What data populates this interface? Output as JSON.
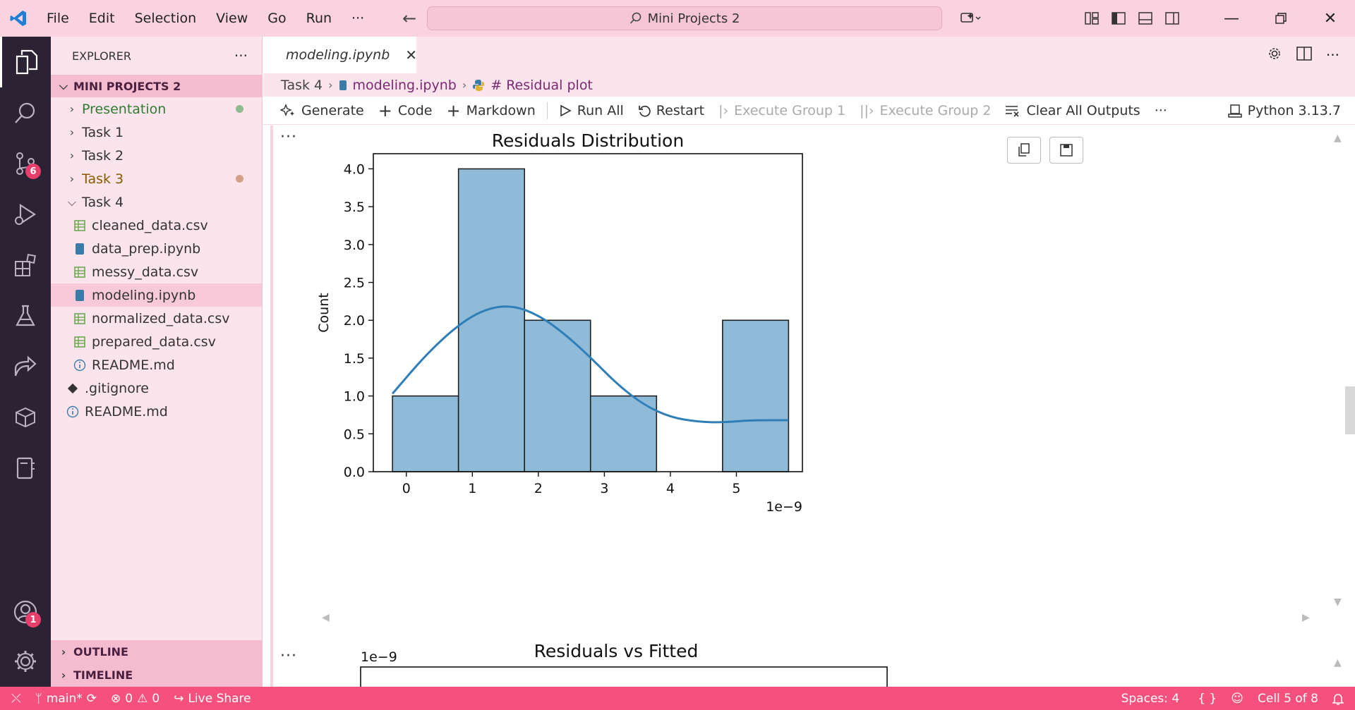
{
  "titlebar": {
    "menu": [
      "File",
      "Edit",
      "Selection",
      "View",
      "Go",
      "Run",
      "···"
    ],
    "search_text": "Mini Projects 2"
  },
  "activity": {
    "source_control_badge": "6",
    "account_badge": "1"
  },
  "sidebar": {
    "header": "EXPLORER",
    "header_more": "···",
    "project": "MINI PROJECTS 2",
    "items": [
      {
        "label": "Presentation",
        "type": "folder",
        "open": false,
        "color": "#2e7d32",
        "dot": "#8fbc8f"
      },
      {
        "label": "Task 1",
        "type": "folder",
        "open": false,
        "color": "#333333"
      },
      {
        "label": "Task 2",
        "type": "folder",
        "open": false,
        "color": "#333333"
      },
      {
        "label": "Task 3",
        "type": "folder",
        "open": false,
        "color": "#8a5a00",
        "dot": "#d4a088"
      },
      {
        "label": "Task 4",
        "type": "folder",
        "open": true,
        "color": "#333333"
      },
      {
        "label": "cleaned_data.csv",
        "type": "csv",
        "indent": 1
      },
      {
        "label": "data_prep.ipynb",
        "type": "ipynb",
        "indent": 1
      },
      {
        "label": "messy_data.csv",
        "type": "csv",
        "indent": 1
      },
      {
        "label": "modeling.ipynb",
        "type": "ipynb",
        "indent": 1,
        "selected": true
      },
      {
        "label": "normalized_data.csv",
        "type": "csv",
        "indent": 1
      },
      {
        "label": "prepared_data.csv",
        "type": "csv",
        "indent": 1
      },
      {
        "label": "README.md",
        "type": "info",
        "indent": 1
      },
      {
        "label": ".gitignore",
        "type": "git",
        "indent": 0
      },
      {
        "label": "README.md",
        "type": "info",
        "indent": 0
      }
    ],
    "outline": "OUTLINE",
    "timeline": "TIMELINE"
  },
  "editor": {
    "tab_label": "modeling.ipynb",
    "breadcrumb": [
      "Task 4",
      "modeling.ipynb",
      "# Residual plot"
    ],
    "toolbar": {
      "generate": "Generate",
      "code": "Code",
      "markdown": "Markdown",
      "run_all": "Run All",
      "restart": "Restart",
      "execute_group_1": "Execute Group 1",
      "execute_group_2": "Execute Group 2",
      "clear_outputs": "Clear All Outputs",
      "more": "···",
      "kernel": "Python 3.13.7"
    },
    "cell_ellipsis": "···"
  },
  "chart_data": [
    {
      "type": "bar",
      "title": "Residuals Distribution",
      "xlabel": "",
      "ylabel": "Count",
      "x_offset_label": "1e−9",
      "xlim": [
        -0.5,
        6.0
      ],
      "ylim": [
        0,
        4.2
      ],
      "xticks": [
        0,
        1,
        2,
        3,
        4,
        5
      ],
      "yticks": [
        "0.0",
        "0.5",
        "1.0",
        "1.5",
        "2.0",
        "2.5",
        "3.0",
        "3.5",
        "4.0"
      ],
      "bins": [
        {
          "left": -0.21,
          "right": 0.79,
          "count": 1
        },
        {
          "left": 0.79,
          "right": 1.79,
          "count": 4
        },
        {
          "left": 1.79,
          "right": 2.79,
          "count": 2
        },
        {
          "left": 2.79,
          "right": 3.79,
          "count": 1
        },
        {
          "left": 3.79,
          "right": 4.79,
          "count": 0
        },
        {
          "left": 4.79,
          "right": 5.79,
          "count": 2
        }
      ],
      "kde": [
        [
          -0.21,
          1.03
        ],
        [
          0.3,
          1.55
        ],
        [
          0.8,
          1.95
        ],
        [
          1.2,
          2.15
        ],
        [
          1.6,
          2.2
        ],
        [
          2.0,
          2.07
        ],
        [
          2.4,
          1.82
        ],
        [
          2.8,
          1.5
        ],
        [
          3.2,
          1.15
        ],
        [
          3.6,
          0.88
        ],
        [
          4.0,
          0.72
        ],
        [
          4.4,
          0.66
        ],
        [
          4.8,
          0.65
        ],
        [
          5.2,
          0.68
        ],
        [
          5.79,
          0.68
        ]
      ],
      "bar_color": "#8fbbd9",
      "line_color": "#2e7fb8"
    },
    {
      "type": "scatter",
      "title": "Residuals vs Fitted",
      "y_offset_label": "1e−9"
    }
  ],
  "statusbar": {
    "branch": "main*",
    "errors": "0",
    "warnings": "0",
    "live_share": "Live Share",
    "spaces": "Spaces: 4",
    "braces": "{ }",
    "cell": "Cell 5 of 8"
  }
}
